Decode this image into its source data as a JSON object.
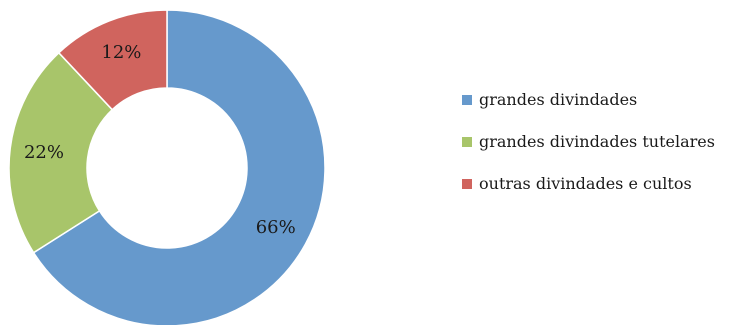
{
  "chart_data": {
    "type": "pie",
    "variant": "donut",
    "categories": [
      "grandes divindades",
      "grandes divindades tutelares",
      "outras divindades e cultos"
    ],
    "values": [
      66,
      22,
      12
    ],
    "value_labels": [
      "66%",
      "22%",
      "12%"
    ],
    "colors": [
      "#6699cc",
      "#a8c56a",
      "#d0645e"
    ],
    "title": "",
    "legend": {
      "placement": "right",
      "entries": [
        "grandes divindades",
        "grandes divindades tutelares",
        "outras divindades e cultos"
      ]
    }
  }
}
